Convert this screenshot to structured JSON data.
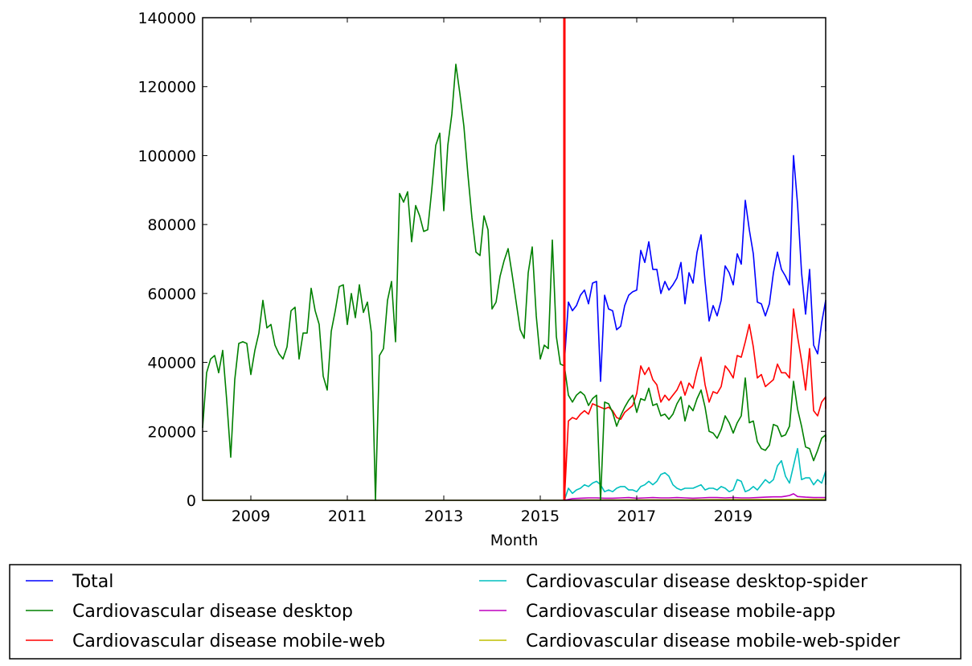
{
  "chart_data": {
    "type": "line",
    "title": "",
    "xlabel": "Month",
    "ylabel": "",
    "xlim": [
      2008.0,
      2020.917
    ],
    "ylim": [
      0,
      140000
    ],
    "x_ticks": [
      2009,
      2011,
      2013,
      2015,
      2017,
      2019
    ],
    "x_tick_labels": [
      "2009",
      "2011",
      "2013",
      "2015",
      "2017",
      "2019"
    ],
    "y_ticks": [
      0,
      20000,
      40000,
      60000,
      80000,
      100000,
      120000,
      140000
    ],
    "y_tick_labels": [
      "0",
      "20000",
      "40000",
      "60000",
      "80000",
      "100000",
      "120000",
      "140000"
    ],
    "grid": false,
    "legend_position": "bottom",
    "vline": {
      "x": 2015.5,
      "color": "#ff0000"
    },
    "colors": {
      "total": "#0000ff",
      "desktop": "#008000",
      "mobile_web": "#ff0000",
      "desktop_spider": "#00bfbf",
      "mobile_app": "#bf00bf",
      "mobile_web_spider": "#bfbf00"
    },
    "series": [
      {
        "key": "total",
        "name": "Total",
        "color": "#0000ff",
        "x": [
          2015.5,
          2015.583,
          2015.667,
          2015.75,
          2015.833,
          2015.917,
          2016.0,
          2016.083,
          2016.167,
          2016.25,
          2016.333,
          2016.417,
          2016.5,
          2016.583,
          2016.667,
          2016.75,
          2016.833,
          2016.917,
          2017.0,
          2017.083,
          2017.167,
          2017.25,
          2017.333,
          2017.417,
          2017.5,
          2017.583,
          2017.667,
          2017.75,
          2017.833,
          2017.917,
          2018.0,
          2018.083,
          2018.167,
          2018.25,
          2018.333,
          2018.417,
          2018.5,
          2018.583,
          2018.667,
          2018.75,
          2018.833,
          2018.917,
          2019.0,
          2019.083,
          2019.167,
          2019.25,
          2019.333,
          2019.417,
          2019.5,
          2019.583,
          2019.667,
          2019.75,
          2019.833,
          2019.917,
          2020.0,
          2020.083,
          2020.167,
          2020.25,
          2020.333,
          2020.417,
          2020.5,
          2020.583,
          2020.667,
          2020.75,
          2020.833,
          2020.917
        ],
        "values": [
          40000,
          57500,
          55000,
          56500,
          59500,
          61000,
          57000,
          63000,
          63500,
          34500,
          59500,
          55500,
          55000,
          49500,
          50500,
          56500,
          59500,
          60500,
          61000,
          72500,
          69000,
          75000,
          67000,
          67000,
          60000,
          63500,
          61000,
          62500,
          64500,
          69000,
          57000,
          66000,
          63000,
          72000,
          77000,
          63500,
          52000,
          56500,
          53500,
          58000,
          68000,
          66000,
          62500,
          71500,
          68500,
          87000,
          78500,
          71500,
          57500,
          57000,
          53500,
          57000,
          66000,
          72000,
          67000,
          65000,
          62500,
          100000,
          86000,
          66000,
          54000,
          67000,
          45000,
          42500,
          51500,
          58000
        ],
        "tail": 49000
      },
      {
        "key": "desktop",
        "name": "Cardiovascular disease desktop",
        "color": "#008000",
        "x": [
          2008.0,
          2008.083,
          2008.167,
          2008.25,
          2008.333,
          2008.417,
          2008.5,
          2008.583,
          2008.667,
          2008.75,
          2008.833,
          2008.917,
          2009.0,
          2009.083,
          2009.167,
          2009.25,
          2009.333,
          2009.417,
          2009.5,
          2009.583,
          2009.667,
          2009.75,
          2009.833,
          2009.917,
          2010.0,
          2010.083,
          2010.167,
          2010.25,
          2010.333,
          2010.417,
          2010.5,
          2010.583,
          2010.667,
          2010.75,
          2010.833,
          2010.917,
          2011.0,
          2011.083,
          2011.167,
          2011.25,
          2011.333,
          2011.417,
          2011.5,
          2011.583,
          2011.667,
          2011.75,
          2011.833,
          2011.917,
          2012.0,
          2012.083,
          2012.167,
          2012.25,
          2012.333,
          2012.417,
          2012.5,
          2012.583,
          2012.667,
          2012.75,
          2012.833,
          2012.917,
          2013.0,
          2013.083,
          2013.167,
          2013.25,
          2013.333,
          2013.417,
          2013.5,
          2013.583,
          2013.667,
          2013.75,
          2013.833,
          2013.917,
          2014.0,
          2014.083,
          2014.167,
          2014.25,
          2014.333,
          2014.417,
          2014.5,
          2014.583,
          2014.667,
          2014.75,
          2014.833,
          2014.917,
          2015.0,
          2015.083,
          2015.167,
          2015.25,
          2015.333,
          2015.417,
          2015.5,
          2015.583,
          2015.667,
          2015.75,
          2015.833,
          2015.917,
          2016.0,
          2016.083,
          2016.167,
          2016.25,
          2016.333,
          2016.417,
          2016.5,
          2016.583,
          2016.667,
          2016.75,
          2016.833,
          2016.917,
          2017.0,
          2017.083,
          2017.167,
          2017.25,
          2017.333,
          2017.417,
          2017.5,
          2017.583,
          2017.667,
          2017.75,
          2017.833,
          2017.917,
          2018.0,
          2018.083,
          2018.167,
          2018.25,
          2018.333,
          2018.417,
          2018.5,
          2018.583,
          2018.667,
          2018.75,
          2018.833,
          2018.917,
          2019.0,
          2019.083,
          2019.167,
          2019.25,
          2019.333,
          2019.417,
          2019.5,
          2019.583,
          2019.667,
          2019.75,
          2019.833,
          2019.917,
          2020.0,
          2020.083,
          2020.167,
          2020.25,
          2020.333,
          2020.417,
          2020.5,
          2020.583,
          2020.667,
          2020.75,
          2020.833,
          2020.917
        ],
        "values": [
          21000,
          37000,
          41000,
          42000,
          37000,
          43500,
          29000,
          12500,
          35000,
          45500,
          46000,
          45500,
          36500,
          43500,
          48500,
          58000,
          50000,
          51000,
          45000,
          42500,
          41000,
          44500,
          55000,
          56000,
          41000,
          48500,
          48500,
          61500,
          55000,
          51000,
          36000,
          32000,
          49000,
          55000,
          62000,
          62500,
          51000,
          60000,
          53000,
          62500,
          54500,
          57500,
          48500,
          0,
          42000,
          44000,
          58000,
          63500,
          46000,
          89000,
          86500,
          89500,
          75000,
          85500,
          82500,
          78000,
          78500,
          90000,
          103000,
          106500,
          84000,
          103000,
          112000,
          126500,
          118000,
          108500,
          94500,
          82000,
          72000,
          71000,
          82500,
          78500,
          55500,
          57500,
          65000,
          69500,
          73000,
          65500,
          57500,
          49500,
          47000,
          66000,
          73500,
          53500,
          41000,
          45000,
          44000,
          75500,
          47500,
          39500,
          39000,
          30500,
          28500,
          30500,
          31500,
          30500,
          27500,
          29500,
          30500,
          0,
          28500,
          28000,
          25500,
          21500,
          24500,
          27000,
          29000,
          30500,
          25500,
          29500,
          29000,
          32500,
          27500,
          28000,
          24500,
          25000,
          23500,
          25000,
          28000,
          30000,
          23000,
          27500,
          26000,
          29500,
          32000,
          27000,
          20000,
          19500,
          18000,
          20500,
          24500,
          22500,
          19500,
          22500,
          24500,
          35500,
          22500,
          23000,
          17000,
          15000,
          14500,
          16000,
          22000,
          21500,
          18500,
          19000,
          21500,
          34500,
          26500,
          21500,
          15500,
          15000,
          11500,
          14500,
          18000,
          19000
        ],
        "tail": 17000
      },
      {
        "key": "mobile_web",
        "name": "Cardiovascular disease mobile-web",
        "color": "#ff0000",
        "x": [
          2015.5,
          2015.583,
          2015.667,
          2015.75,
          2015.833,
          2015.917,
          2016.0,
          2016.083,
          2016.167,
          2016.25,
          2016.333,
          2016.417,
          2016.5,
          2016.583,
          2016.667,
          2016.75,
          2016.833,
          2016.917,
          2017.0,
          2017.083,
          2017.167,
          2017.25,
          2017.333,
          2017.417,
          2017.5,
          2017.583,
          2017.667,
          2017.75,
          2017.833,
          2017.917,
          2018.0,
          2018.083,
          2018.167,
          2018.25,
          2018.333,
          2018.417,
          2018.5,
          2018.583,
          2018.667,
          2018.75,
          2018.833,
          2018.917,
          2019.0,
          2019.083,
          2019.167,
          2019.25,
          2019.333,
          2019.417,
          2019.5,
          2019.583,
          2019.667,
          2019.75,
          2019.833,
          2019.917,
          2020.0,
          2020.083,
          2020.167,
          2020.25,
          2020.333,
          2020.417,
          2020.5,
          2020.583,
          2020.667,
          2020.75,
          2020.833,
          2020.917
        ],
        "values": [
          0,
          23000,
          24000,
          23500,
          25000,
          26000,
          25000,
          28000,
          27500,
          27000,
          26500,
          27000,
          26000,
          24000,
          23500,
          25500,
          26500,
          27500,
          31000,
          39000,
          36500,
          38500,
          35000,
          33500,
          28500,
          30500,
          29000,
          30500,
          32000,
          34500,
          30500,
          34000,
          32500,
          37500,
          41500,
          33500,
          28500,
          31500,
          31000,
          33000,
          39000,
          37500,
          35500,
          42000,
          41500,
          46000,
          51000,
          44500,
          35500,
          36500,
          33000,
          34000,
          35000,
          39500,
          37000,
          37000,
          35500,
          55500,
          47500,
          40500,
          32000,
          44000,
          26000,
          24500,
          28500,
          30000
        ],
        "tail": 26500
      },
      {
        "key": "desktop_spider",
        "name": "Cardiovascular disease desktop-spider",
        "color": "#00bfbf",
        "x": [
          2015.5,
          2015.583,
          2015.667,
          2015.75,
          2015.833,
          2015.917,
          2016.0,
          2016.083,
          2016.167,
          2016.25,
          2016.333,
          2016.417,
          2016.5,
          2016.583,
          2016.667,
          2016.75,
          2016.833,
          2016.917,
          2017.0,
          2017.083,
          2017.167,
          2017.25,
          2017.333,
          2017.417,
          2017.5,
          2017.583,
          2017.667,
          2017.75,
          2017.833,
          2017.917,
          2018.0,
          2018.083,
          2018.167,
          2018.25,
          2018.333,
          2018.417,
          2018.5,
          2018.583,
          2018.667,
          2018.75,
          2018.833,
          2018.917,
          2019.0,
          2019.083,
          2019.167,
          2019.25,
          2019.333,
          2019.417,
          2019.5,
          2019.583,
          2019.667,
          2019.75,
          2019.833,
          2019.917,
          2020.0,
          2020.083,
          2020.167,
          2020.25,
          2020.333,
          2020.417,
          2020.5,
          2020.583,
          2020.667,
          2020.75,
          2020.833,
          2020.917
        ],
        "values": [
          0,
          3500,
          2000,
          3000,
          3500,
          4500,
          4000,
          5000,
          5500,
          4500,
          2500,
          3000,
          2500,
          3500,
          4000,
          4000,
          3000,
          3000,
          2500,
          4000,
          4500,
          5500,
          4500,
          5500,
          7500,
          8000,
          7000,
          4500,
          3500,
          3000,
          3500,
          3500,
          3500,
          4000,
          4500,
          3000,
          3500,
          3500,
          3000,
          4000,
          3500,
          2500,
          3000,
          6000,
          5500,
          2500,
          3000,
          4000,
          3000,
          4500,
          6000,
          5000,
          6000,
          10000,
          11500,
          7000,
          5000,
          10000,
          15000,
          6000,
          6500,
          6500,
          4500,
          6000,
          5000,
          8500
        ],
        "tail": 4500
      },
      {
        "key": "mobile_app",
        "name": "Cardiovascular disease mobile-app",
        "color": "#bf00bf",
        "x": [
          2015.5,
          2015.667,
          2015.833,
          2016.0,
          2016.167,
          2016.333,
          2016.5,
          2016.667,
          2016.833,
          2017.0,
          2017.167,
          2017.333,
          2017.5,
          2017.667,
          2017.833,
          2018.0,
          2018.167,
          2018.333,
          2018.5,
          2018.667,
          2018.833,
          2019.0,
          2019.167,
          2019.333,
          2019.5,
          2019.667,
          2019.833,
          2020.0,
          2020.083,
          2020.167,
          2020.25,
          2020.333,
          2020.5,
          2020.667,
          2020.833,
          2020.917
        ],
        "values": [
          0,
          500,
          600,
          700,
          700,
          600,
          600,
          700,
          800,
          600,
          700,
          800,
          700,
          700,
          800,
          700,
          600,
          700,
          800,
          800,
          700,
          800,
          700,
          700,
          800,
          900,
          1000,
          1000,
          1200,
          1400,
          1900,
          1100,
          900,
          800,
          800,
          800
        ],
        "tail": 800
      },
      {
        "key": "mobile_web_spider",
        "name": "Cardiovascular disease mobile-web-spider",
        "color": "#bfbf00",
        "x": [
          2008.0,
          2015.5,
          2016.0,
          2017.0,
          2018.0,
          2019.0,
          2020.0,
          2020.917
        ],
        "values": [
          0,
          0,
          100,
          150,
          150,
          200,
          250,
          300
        ],
        "tail": 300
      }
    ]
  },
  "legend": {
    "items": [
      {
        "label": "Total",
        "color": "#0000ff"
      },
      {
        "label": "Cardiovascular disease desktop",
        "color": "#008000"
      },
      {
        "label": "Cardiovascular disease mobile-web",
        "color": "#ff0000"
      },
      {
        "label": "Cardiovascular disease desktop-spider",
        "color": "#00bfbf"
      },
      {
        "label": "Cardiovascular disease mobile-app",
        "color": "#bf00bf"
      },
      {
        "label": "Cardiovascular disease mobile-web-spider",
        "color": "#bfbf00"
      }
    ]
  }
}
